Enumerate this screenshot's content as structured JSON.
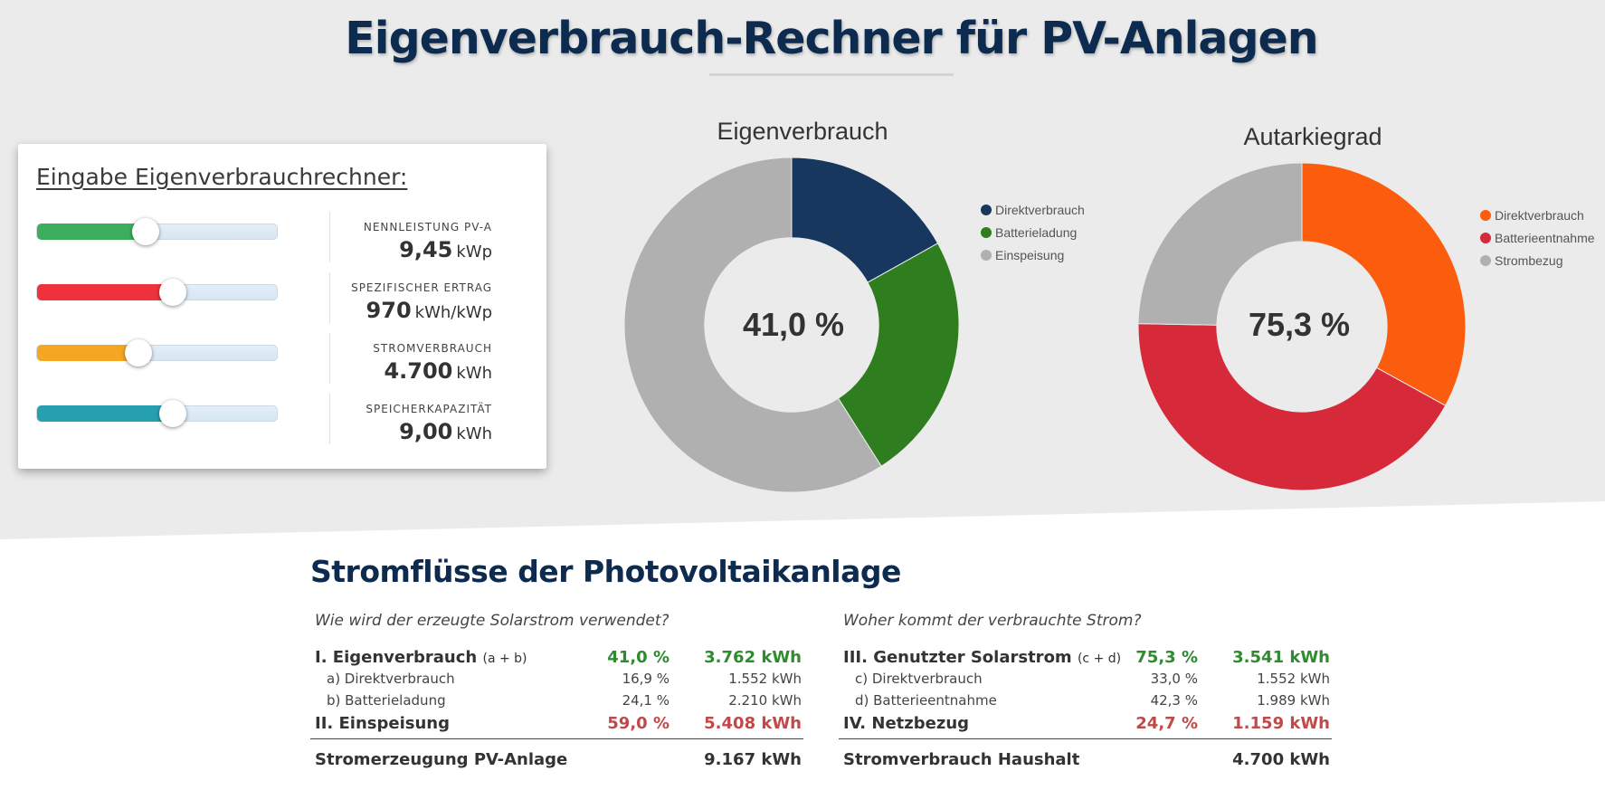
{
  "title": "Eigenverbrauch-Rechner für PV-Anlagen",
  "input": {
    "heading": "Eingabe Eigenverbrauchrechner:",
    "sliders": [
      {
        "label": "NENNLEISTUNG PV-A",
        "value": "9,45",
        "unit": "kWp",
        "fill_fraction": 0.45,
        "color": "#3cae5d"
      },
      {
        "label": "SPEZIFISCHER ERTRAG",
        "value": "970",
        "unit": "kWh/kWp",
        "fill_fraction": 0.56,
        "color": "#f0323d"
      },
      {
        "label": "STROMVERBRAUCH",
        "value": "4.700",
        "unit": "kWh",
        "fill_fraction": 0.42,
        "color": "#f5a623"
      },
      {
        "label": "SPEICHERKAPAZITÄT",
        "value": "9,00",
        "unit": "kWh",
        "fill_fraction": 0.56,
        "color": "#269fb1"
      }
    ]
  },
  "chart_data": [
    {
      "type": "pie",
      "title": "Eigenverbrauch",
      "center_label": "41,0 %",
      "categories": [
        "Direktverbrauch",
        "Batterieladung",
        "Einspeisung"
      ],
      "values": [
        16.9,
        24.1,
        59.0
      ],
      "colors": [
        "#17375e",
        "#2e7d1f",
        "#b0b0b0"
      ],
      "legend": "right"
    },
    {
      "type": "pie",
      "title": "Autarkiegrad",
      "center_label": "75,3 %",
      "categories": [
        "Direktverbrauch",
        "Batterieentnahme",
        "Strombezug"
      ],
      "values": [
        33.0,
        42.3,
        24.7
      ],
      "colors": [
        "#fc5c0d",
        "#d6293a",
        "#b0b0b0"
      ],
      "legend": "right"
    }
  ],
  "flows": {
    "title": "Stromflüsse der Photovoltaikanlage",
    "left": {
      "question": "Wie wird der erzeugte Solarstrom verwendet?",
      "main": {
        "label": "I. Eigenverbrauch",
        "sub": "(a + b)",
        "pct": "41,0 %",
        "kwh": "3.762 kWh"
      },
      "a": {
        "label": "a) Direktverbrauch",
        "pct": "16,9 %",
        "kwh": "1.552 kWh"
      },
      "b": {
        "label": "b) Batterieladung",
        "pct": "24,1 %",
        "kwh": "2.210 kWh"
      },
      "neg": {
        "label": "II. Einspeisung",
        "pct": "59,0 %",
        "kwh": "5.408 kWh"
      },
      "total": {
        "label": "Stromerzeugung PV-Anlage",
        "kwh": "9.167 kWh"
      }
    },
    "right": {
      "question": "Woher kommt der verbrauchte Strom?",
      "main": {
        "label": "III. Genutzter Solarstrom",
        "sub": "(c + d)",
        "pct": "75,3 %",
        "kwh": "3.541 kWh"
      },
      "a": {
        "label": "c) Direktverbrauch",
        "pct": "33,0 %",
        "kwh": "1.552 kWh"
      },
      "b": {
        "label": "d) Batterieentnahme",
        "pct": "42,3 %",
        "kwh": "1.989 kWh"
      },
      "neg": {
        "label": "IV. Netzbezug",
        "pct": "24,7 %",
        "kwh": "1.159 kWh"
      },
      "total": {
        "label": "Stromverbrauch Haushalt",
        "kwh": "4.700 kWh"
      }
    }
  }
}
